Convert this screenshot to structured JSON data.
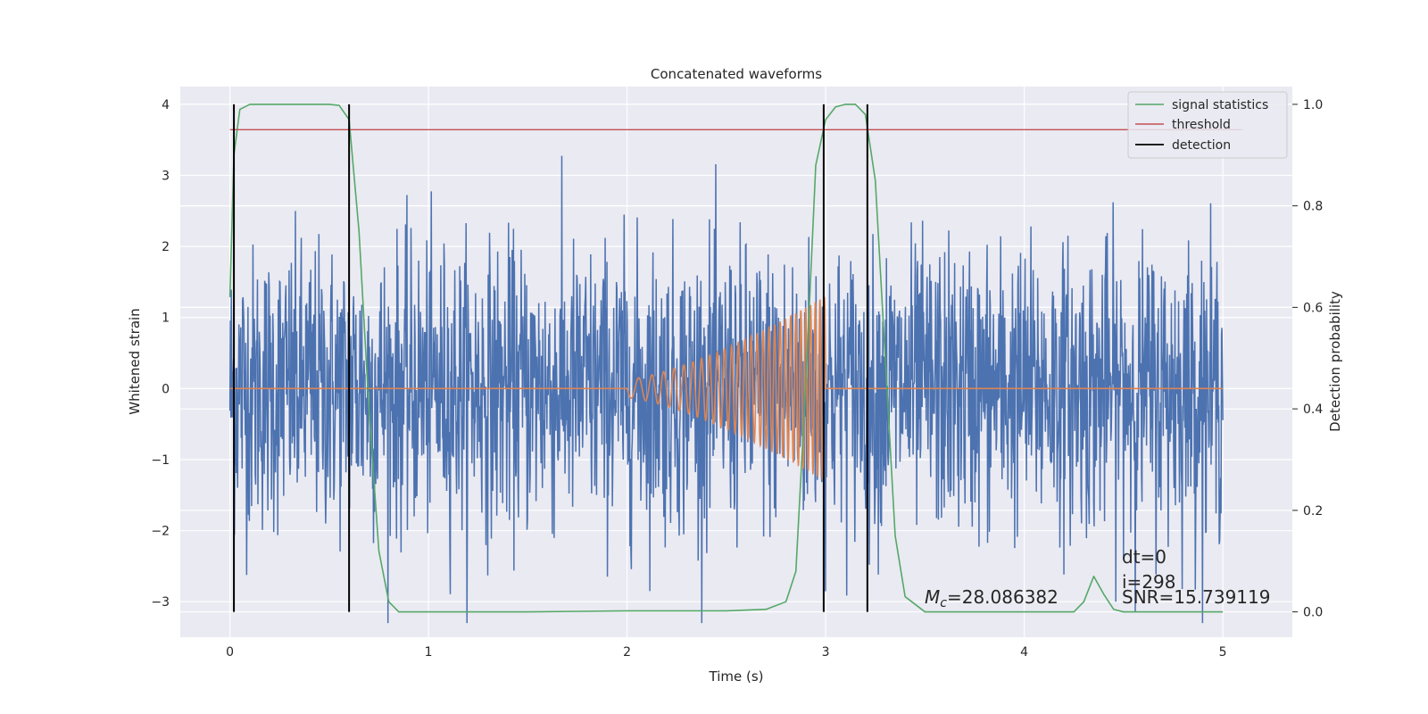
{
  "chart_data": {
    "type": "line",
    "title": "Concatenated waveforms",
    "xlabel": "Time (s)",
    "ylabel": "Whitened strain",
    "ylabel_right": "Detection probability",
    "xlim": [
      -0.25,
      5.35
    ],
    "ylim": [
      -3.5,
      4.25
    ],
    "ylim_right": [
      -0.05,
      1.035
    ],
    "x_ticks": [
      0,
      1,
      2,
      3,
      4,
      5
    ],
    "y_ticks": [
      -3,
      -2,
      -1,
      0,
      1,
      2,
      3,
      4
    ],
    "y_ticks_right": [
      0.0,
      0.2,
      0.4,
      0.6,
      0.8,
      1.0
    ],
    "tick_labels_x": [
      "0",
      "1",
      "2",
      "3",
      "4",
      "5"
    ],
    "tick_labels_y": [
      "−3",
      "−2",
      "−1",
      "0",
      "1",
      "2",
      "3",
      "4"
    ],
    "tick_labels_right": [
      "0.0",
      "0.2",
      "0.4",
      "0.6",
      "0.8",
      "1.0"
    ],
    "grid": true,
    "legend_position": "top-right",
    "colors": {
      "background": "#eaeaf2",
      "noise": "#4c72b0",
      "waveform": "#dd8452",
      "signal_statistics": "#55a868",
      "threshold": "#c44e52",
      "detection": "#000000"
    },
    "series": [
      {
        "name": "",
        "axis": "left",
        "color": "#4c72b0",
        "description_key": "whitened-noise",
        "x_range": [
          0,
          5
        ],
        "amplitude_typical": 1.0,
        "max_value": 3.9,
        "min_value": -3.3
      },
      {
        "name": "",
        "axis": "left",
        "color": "#dd8452",
        "description_key": "injected-chirp",
        "x_range": [
          0,
          5
        ],
        "chirp_start": 2.0,
        "chirp_end": 3.0,
        "peak_amplitude": 1.3
      },
      {
        "name": "signal statistics",
        "axis": "right",
        "color": "#55a868",
        "x": [
          0.0,
          0.02,
          0.05,
          0.1,
          0.2,
          0.4,
          0.5,
          0.55,
          0.6,
          0.65,
          0.7,
          0.75,
          0.8,
          0.85,
          1.0,
          1.5,
          2.0,
          2.5,
          2.7,
          2.8,
          2.85,
          2.9,
          2.95,
          3.0,
          3.05,
          3.1,
          3.15,
          3.2,
          3.25,
          3.3,
          3.35,
          3.4,
          3.5,
          4.0,
          4.25,
          4.3,
          4.35,
          4.4,
          4.45,
          4.5,
          5.0
        ],
        "y": [
          0.62,
          0.9,
          0.99,
          1.0,
          1.0,
          1.0,
          1.0,
          0.998,
          0.97,
          0.75,
          0.4,
          0.12,
          0.02,
          0.0,
          0.0,
          0.0,
          0.002,
          0.002,
          0.005,
          0.02,
          0.08,
          0.45,
          0.88,
          0.97,
          0.995,
          1.0,
          1.0,
          0.98,
          0.85,
          0.5,
          0.15,
          0.03,
          0.0,
          0.0,
          0.0,
          0.02,
          0.07,
          0.035,
          0.005,
          0.0,
          0.0
        ]
      },
      {
        "name": "threshold",
        "axis": "right",
        "color": "#c44e52",
        "x": [
          0,
          5.1
        ],
        "y": [
          0.95,
          0.95
        ]
      },
      {
        "name": "detection",
        "axis": "right",
        "color": "#000000",
        "vertical_lines_x": [
          0.02,
          0.6,
          2.99,
          3.21
        ],
        "span": [
          0.0,
          1.0
        ]
      }
    ],
    "annotations": {
      "mc_symbol": "M",
      "mc_subscript": "c",
      "mc_text": "=28.086382",
      "dt": "dt=0",
      "i": "i=298",
      "snr": "SNR=15.739119"
    }
  }
}
